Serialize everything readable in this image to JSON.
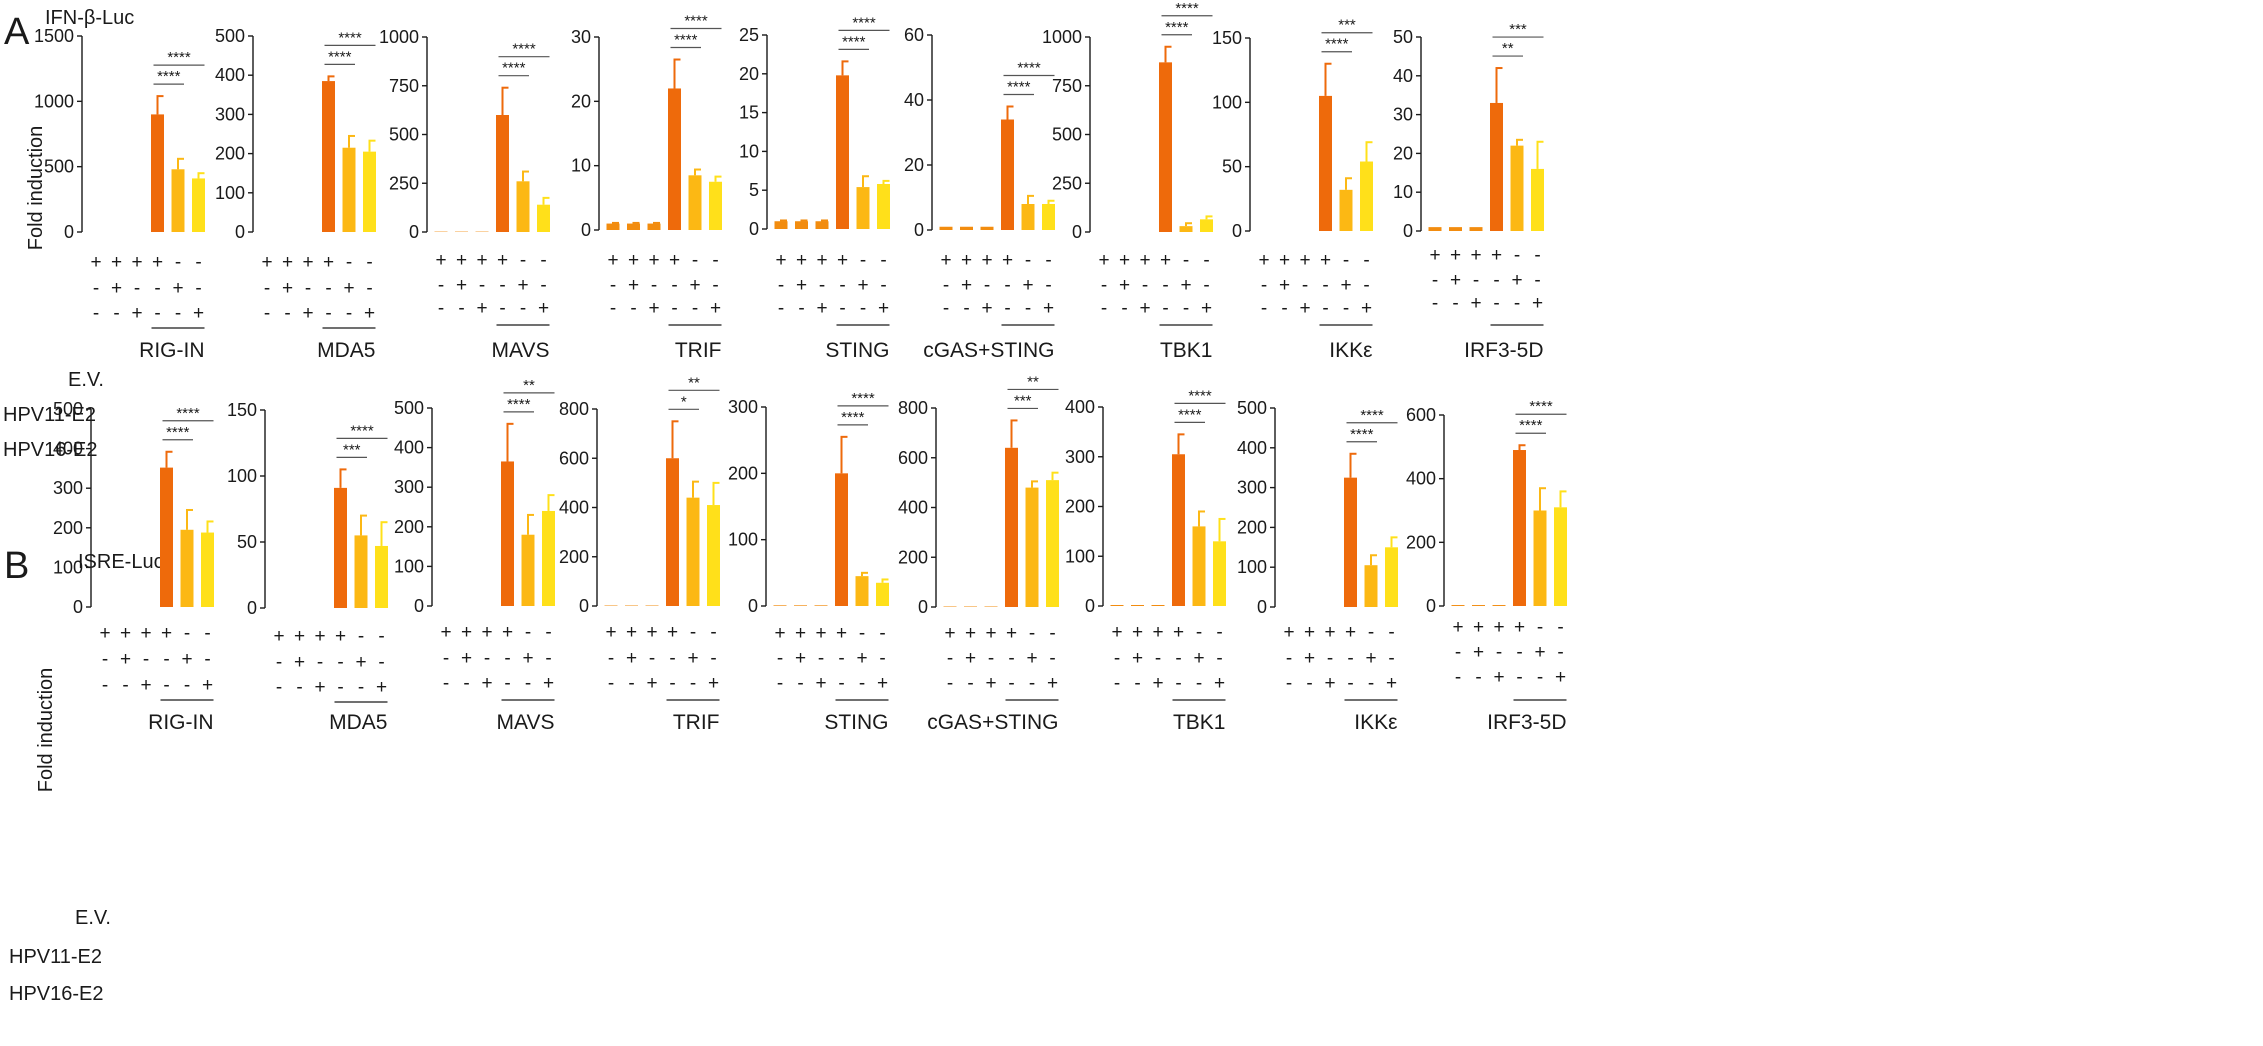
{
  "colors": {
    "low": "#F28C0F",
    "mid": "#FCB814",
    "high": "#FFE01A",
    "peak": "#EE6A0B",
    "axis": "#1a1a1a",
    "sig": "#555555"
  },
  "row_labels": {
    "E.V.": "E.V.",
    "HPV11-E2": "HPV11-E2",
    "HPV16-E2": "HPV16-E2"
  },
  "chart_data": [
    {
      "panel": "A",
      "reporter": "IFN-β-Luc",
      "ylabel": "Fold induction",
      "type": "bar",
      "conditions": {
        "ev": [
          "+",
          "+",
          "+",
          "+",
          "-",
          "-"
        ],
        "hpv11": [
          "-",
          "+",
          "-",
          "-",
          "+",
          "-"
        ],
        "hpv16": [
          "-",
          "-",
          "+",
          "-",
          "-",
          "+"
        ]
      },
      "subplots": [
        {
          "title": "RIG-IN",
          "ylim": [
            0,
            1500
          ],
          "ticks": [
            0,
            500,
            1000,
            1500
          ],
          "values": [
            0,
            0,
            0,
            900,
            480,
            410
          ],
          "errors": [
            0,
            0,
            0,
            140,
            80,
            40
          ],
          "sig": [
            {
              "from": 3,
              "to": 4,
              "label": "****"
            },
            {
              "from": 3,
              "to": 5,
              "label": "****"
            }
          ]
        },
        {
          "title": "MDA5",
          "ylim": [
            0,
            500
          ],
          "ticks": [
            0,
            100,
            200,
            300,
            400,
            500
          ],
          "values": [
            0,
            0,
            0,
            385,
            215,
            205
          ],
          "errors": [
            0,
            0,
            0,
            12,
            30,
            28
          ],
          "sig": [
            {
              "from": 3,
              "to": 4,
              "label": "****"
            },
            {
              "from": 3,
              "to": 5,
              "label": "****"
            }
          ]
        },
        {
          "title": "MAVS",
          "ylim": [
            0,
            1000
          ],
          "ticks": [
            0,
            250,
            500,
            750,
            1000
          ],
          "values": [
            2,
            2,
            2,
            600,
            260,
            140
          ],
          "errors": [
            0,
            0,
            0,
            140,
            50,
            35
          ],
          "sig": [
            {
              "from": 3,
              "to": 4,
              "label": "****"
            },
            {
              "from": 3,
              "to": 5,
              "label": "****"
            }
          ]
        },
        {
          "title": "TRIF",
          "ylim": [
            0,
            30
          ],
          "ticks": [
            0,
            10,
            20,
            30
          ],
          "values": [
            1,
            1,
            1,
            22,
            8.5,
            7.5
          ],
          "errors": [
            0.1,
            0.1,
            0.1,
            4.5,
            0.9,
            0.8
          ],
          "sig": [
            {
              "from": 3,
              "to": 4,
              "label": "****"
            },
            {
              "from": 3,
              "to": 5,
              "label": "****"
            }
          ]
        },
        {
          "title": "STING",
          "ylim": [
            0,
            25
          ],
          "ticks": [
            0,
            5,
            10,
            15,
            20,
            25
          ],
          "values": [
            1,
            1,
            1,
            19.8,
            5.4,
            5.8
          ],
          "errors": [
            0.1,
            0.1,
            0.1,
            1.8,
            1.4,
            0.4
          ],
          "sig": [
            {
              "from": 3,
              "to": 4,
              "label": "****"
            },
            {
              "from": 3,
              "to": 5,
              "label": "****"
            }
          ]
        },
        {
          "title": "cGAS+STING",
          "ylim": [
            0,
            60
          ],
          "ticks": [
            0,
            20,
            40,
            60
          ],
          "values": [
            1,
            1,
            1,
            34,
            8,
            8
          ],
          "errors": [
            0,
            0,
            0,
            4,
            2.5,
            1
          ],
          "sig": [
            {
              "from": 3,
              "to": 4,
              "label": "****"
            },
            {
              "from": 3,
              "to": 5,
              "label": "****"
            }
          ]
        },
        {
          "title": "TBK1",
          "ylim": [
            0,
            1000
          ],
          "ticks": [
            0,
            250,
            500,
            750,
            1000
          ],
          "values": [
            0,
            0,
            0,
            870,
            30,
            65
          ],
          "errors": [
            0,
            0,
            0,
            80,
            15,
            15
          ],
          "sig": [
            {
              "from": 3,
              "to": 4,
              "label": "****"
            },
            {
              "from": 3,
              "to": 5,
              "label": "****"
            }
          ]
        },
        {
          "title": "IKKε",
          "ylim": [
            0,
            150
          ],
          "ticks": [
            0,
            50,
            100,
            150
          ],
          "values": [
            0,
            0,
            0,
            105,
            32,
            54
          ],
          "errors": [
            0,
            0,
            0,
            25,
            9,
            15
          ],
          "sig": [
            {
              "from": 3,
              "to": 4,
              "label": "****"
            },
            {
              "from": 3,
              "to": 5,
              "label": "***"
            }
          ]
        },
        {
          "title": "IRF3-5D",
          "ylim": [
            0,
            50
          ],
          "ticks": [
            0,
            10,
            20,
            30,
            40,
            50
          ],
          "values": [
            1,
            1,
            1,
            33,
            22,
            16
          ],
          "errors": [
            0,
            0,
            0,
            9,
            1.5,
            7
          ],
          "sig": [
            {
              "from": 3,
              "to": 4,
              "label": "**"
            },
            {
              "from": 3,
              "to": 5,
              "label": "***"
            }
          ]
        }
      ]
    },
    {
      "panel": "B",
      "reporter": "ISRE-Luc",
      "ylabel": "Fold induction",
      "type": "bar",
      "conditions": {
        "ev": [
          "+",
          "+",
          "+",
          "+",
          "-",
          "-"
        ],
        "hpv11": [
          "-",
          "+",
          "-",
          "-",
          "+",
          "-"
        ],
        "hpv16": [
          "-",
          "-",
          "+",
          "-",
          "-",
          "+"
        ]
      },
      "subplots": [
        {
          "title": "RIG-IN",
          "ylim": [
            0,
            500
          ],
          "ticks": [
            0,
            100,
            200,
            300,
            400,
            500
          ],
          "values": [
            0,
            0,
            0,
            352,
            195,
            188
          ],
          "errors": [
            0,
            0,
            0,
            40,
            50,
            28
          ],
          "sig": [
            {
              "from": 3,
              "to": 4,
              "label": "****"
            },
            {
              "from": 3,
              "to": 5,
              "label": "****"
            }
          ]
        },
        {
          "title": "MDA5",
          "ylim": [
            0,
            150
          ],
          "ticks": [
            0,
            50,
            100,
            150
          ],
          "values": [
            0,
            0,
            0,
            91,
            55,
            47
          ],
          "errors": [
            0,
            0,
            0,
            14,
            15,
            18
          ],
          "sig": [
            {
              "from": 3,
              "to": 4,
              "label": "***"
            },
            {
              "from": 3,
              "to": 5,
              "label": "****"
            }
          ]
        },
        {
          "title": "MAVS",
          "ylim": [
            0,
            500
          ],
          "ticks": [
            0,
            100,
            200,
            300,
            400,
            500
          ],
          "values": [
            0,
            0,
            0,
            365,
            180,
            240
          ],
          "errors": [
            0,
            0,
            0,
            95,
            50,
            40
          ],
          "sig": [
            {
              "from": 3,
              "to": 4,
              "label": "****"
            },
            {
              "from": 3,
              "to": 5,
              "label": "**"
            }
          ]
        },
        {
          "title": "TRIF",
          "ylim": [
            0,
            800
          ],
          "ticks": [
            0,
            200,
            400,
            600,
            800
          ],
          "values": [
            2,
            2,
            2,
            600,
            440,
            410
          ],
          "errors": [
            0,
            0,
            0,
            150,
            65,
            90
          ],
          "sig": [
            {
              "from": 3,
              "to": 4,
              "label": "*"
            },
            {
              "from": 3,
              "to": 5,
              "label": "**"
            }
          ]
        },
        {
          "title": "STING",
          "ylim": [
            0,
            300
          ],
          "ticks": [
            0,
            100,
            200,
            300
          ],
          "values": [
            1,
            1,
            1,
            200,
            45,
            35
          ],
          "errors": [
            0,
            0,
            0,
            55,
            5,
            5
          ],
          "sig": [
            {
              "from": 3,
              "to": 4,
              "label": "****"
            },
            {
              "from": 3,
              "to": 5,
              "label": "****"
            }
          ]
        },
        {
          "title": "cGAS+STING",
          "ylim": [
            0,
            800
          ],
          "ticks": [
            0,
            200,
            400,
            600,
            800
          ],
          "values": [
            2,
            2,
            2,
            640,
            480,
            510
          ],
          "errors": [
            0,
            0,
            0,
            110,
            25,
            30
          ],
          "sig": [
            {
              "from": 3,
              "to": 4,
              "label": "***"
            },
            {
              "from": 3,
              "to": 5,
              "label": "**"
            }
          ]
        },
        {
          "title": "TBK1",
          "ylim": [
            0,
            400
          ],
          "ticks": [
            0,
            100,
            200,
            300,
            400
          ],
          "values": [
            2,
            2,
            2,
            305,
            160,
            130
          ],
          "errors": [
            0,
            0,
            0,
            40,
            30,
            45
          ],
          "sig": [
            {
              "from": 3,
              "to": 4,
              "label": "****"
            },
            {
              "from": 3,
              "to": 5,
              "label": "****"
            }
          ]
        },
        {
          "title": "IKKε",
          "ylim": [
            0,
            500
          ],
          "ticks": [
            0,
            100,
            200,
            300,
            400,
            500
          ],
          "values": [
            0,
            0,
            0,
            325,
            105,
            150
          ],
          "errors": [
            0,
            0,
            0,
            60,
            25,
            25
          ],
          "sig": [
            {
              "from": 3,
              "to": 4,
              "label": "****"
            },
            {
              "from": 3,
              "to": 5,
              "label": "****"
            }
          ]
        },
        {
          "title": "IRF3-5D",
          "ylim": [
            0,
            600
          ],
          "ticks": [
            0,
            200,
            400,
            600
          ],
          "values": [
            3,
            3,
            3,
            490,
            300,
            310
          ],
          "errors": [
            0,
            0,
            0,
            15,
            70,
            50
          ],
          "sig": [
            {
              "from": 3,
              "to": 4,
              "label": "****"
            },
            {
              "from": 3,
              "to": 5,
              "label": "****"
            }
          ]
        }
      ]
    }
  ]
}
